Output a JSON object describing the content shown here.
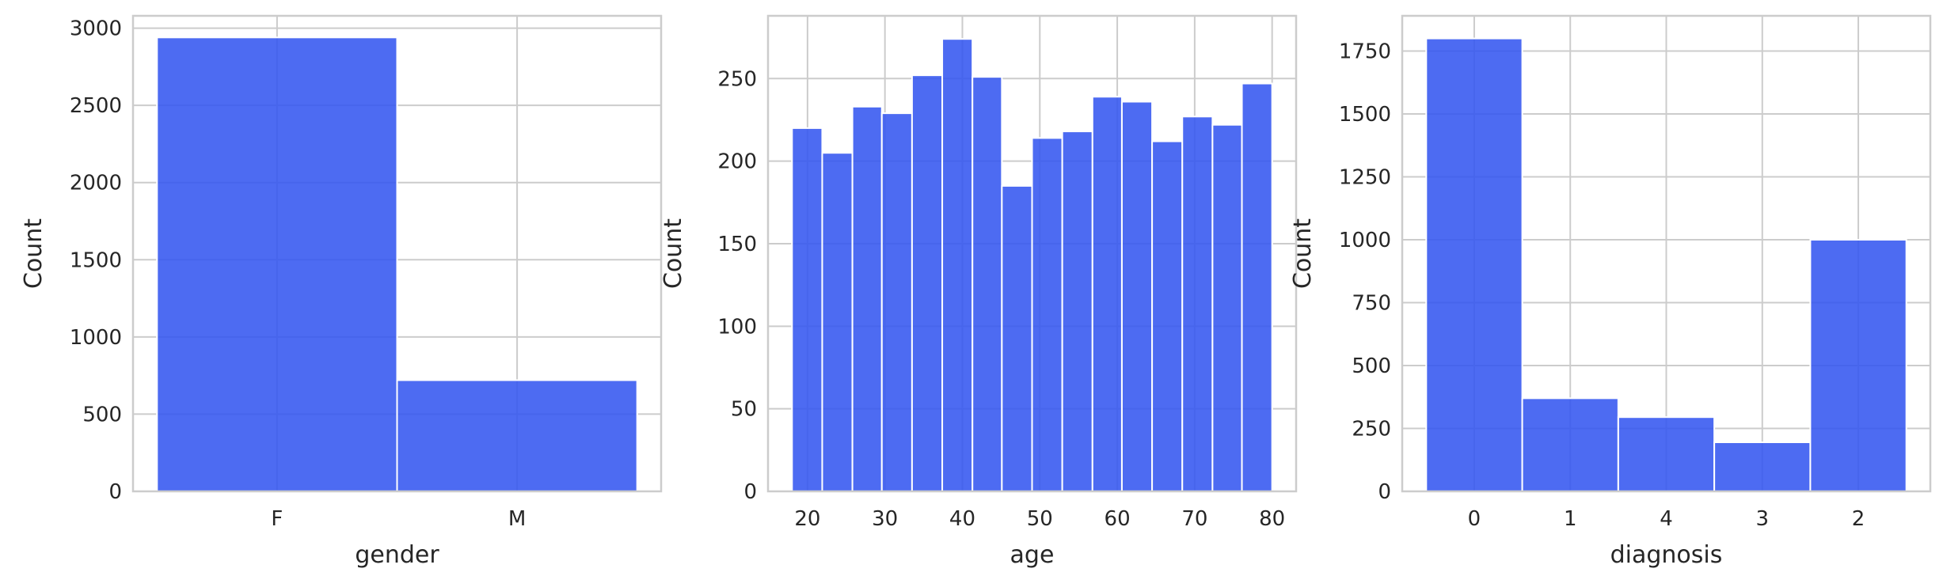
{
  "chart_data": [
    {
      "type": "bar",
      "categories": [
        "F",
        "M"
      ],
      "values": [
        2940,
        720
      ],
      "xlabel": "gender",
      "ylabel": "Count",
      "ylim": [
        0,
        3080
      ],
      "yticks": [
        0,
        500,
        1000,
        1500,
        2000,
        2500,
        3000
      ],
      "grid": true,
      "color": "#3456f0"
    },
    {
      "type": "bar",
      "bins": [
        {
          "x0": 18.0,
          "x1": 21.9,
          "count": 220
        },
        {
          "x0": 21.9,
          "x1": 25.8,
          "count": 205
        },
        {
          "x0": 25.8,
          "x1": 29.6,
          "count": 233
        },
        {
          "x0": 29.6,
          "x1": 33.5,
          "count": 229
        },
        {
          "x0": 33.5,
          "x1": 37.4,
          "count": 252
        },
        {
          "x0": 37.4,
          "x1": 41.3,
          "count": 274
        },
        {
          "x0": 41.3,
          "x1": 45.1,
          "count": 251
        },
        {
          "x0": 45.1,
          "x1": 49.0,
          "count": 185
        },
        {
          "x0": 49.0,
          "x1": 52.9,
          "count": 214
        },
        {
          "x0": 52.9,
          "x1": 56.8,
          "count": 218
        },
        {
          "x0": 56.8,
          "x1": 60.6,
          "count": 239
        },
        {
          "x0": 60.6,
          "x1": 64.5,
          "count": 236
        },
        {
          "x0": 64.5,
          "x1": 68.4,
          "count": 212
        },
        {
          "x0": 68.4,
          "x1": 72.3,
          "count": 227
        },
        {
          "x0": 72.3,
          "x1": 76.1,
          "count": 222
        },
        {
          "x0": 76.1,
          "x1": 80.0,
          "count": 247
        }
      ],
      "xlabel": "age",
      "ylabel": "Count",
      "xlim": [
        14.9,
        83.1
      ],
      "ylim": [
        0,
        288
      ],
      "xticks": [
        20,
        30,
        40,
        50,
        60,
        70,
        80
      ],
      "yticks": [
        0,
        50,
        100,
        150,
        200,
        250
      ],
      "grid": true,
      "color": "#3456f0"
    },
    {
      "type": "bar",
      "categories": [
        "0",
        "1",
        "4",
        "3",
        "2"
      ],
      "values": [
        1800,
        370,
        295,
        195,
        1000
      ],
      "xlabel": "diagnosis",
      "ylabel": "Count",
      "ylim": [
        0,
        1890
      ],
      "yticks": [
        0,
        250,
        500,
        750,
        1000,
        1250,
        1500,
        1750
      ],
      "grid": true,
      "color": "#3456f0"
    }
  ]
}
